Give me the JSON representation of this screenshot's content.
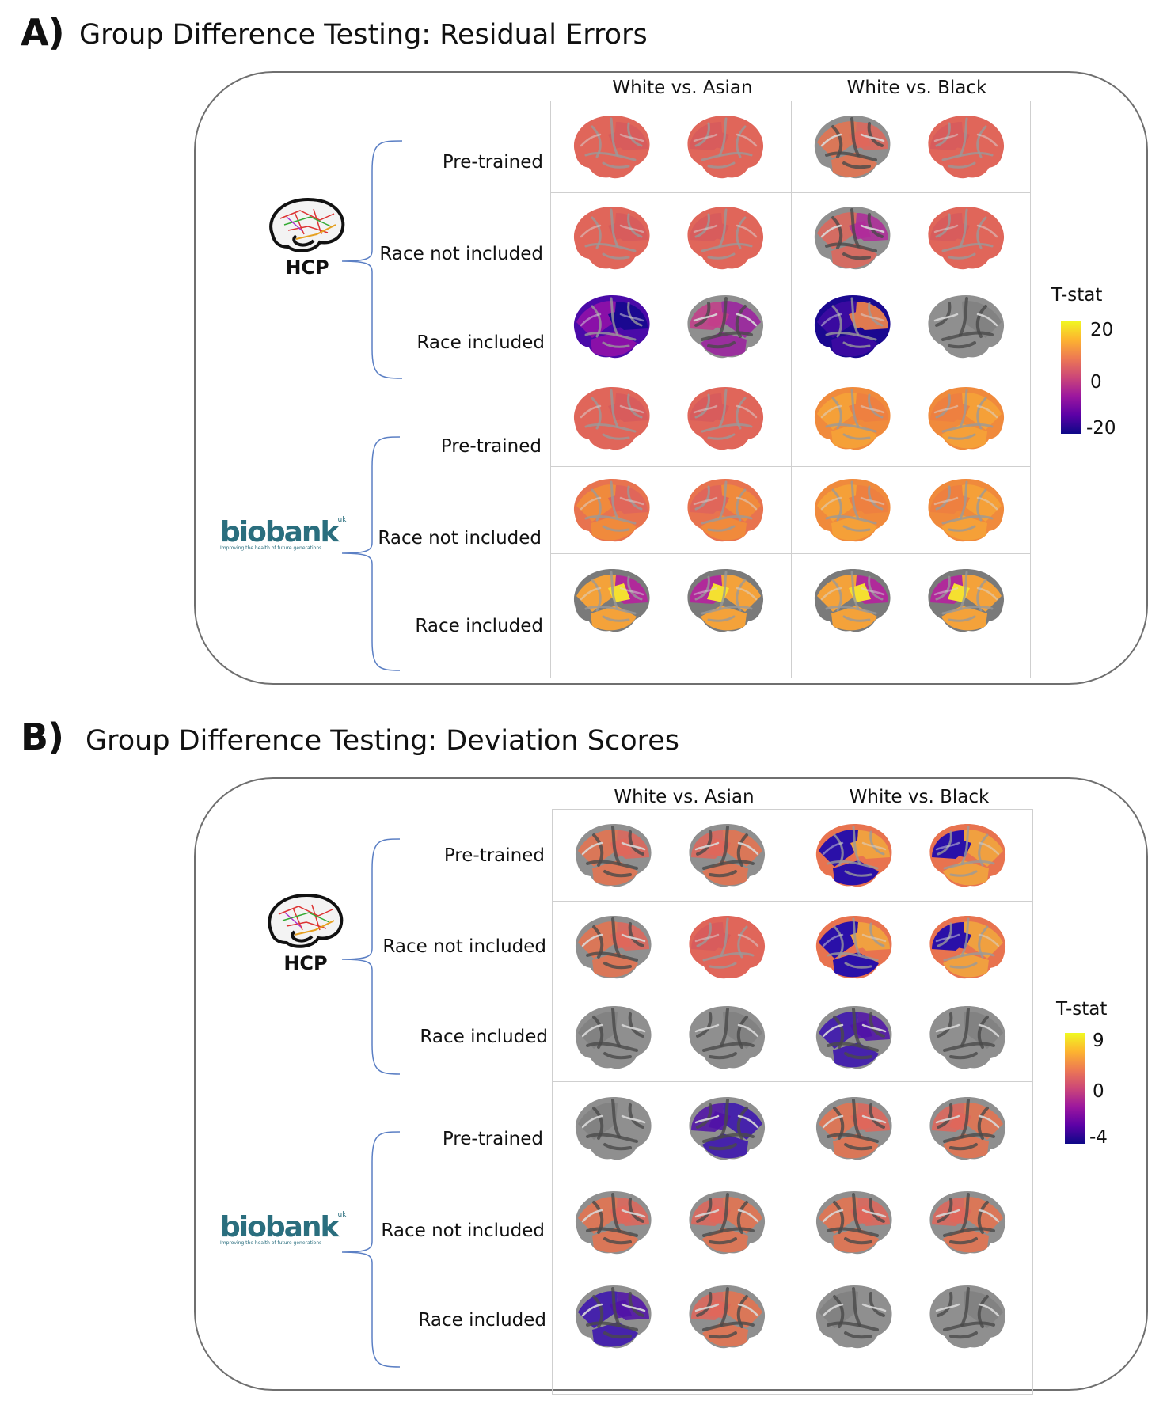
{
  "panels": [
    {
      "letter": "A)",
      "title": "Group Difference Testing: Residual Errors",
      "columns": [
        "White vs. Asian",
        "White vs. Black"
      ],
      "groups": [
        {
          "logo": "hcp-brain-logo",
          "label": "HCP",
          "rows": [
            "Pre-trained",
            "Race not included",
            "Race included"
          ]
        },
        {
          "logo": "biobank-logo",
          "label": "biobank",
          "sup": "uk",
          "tagline": "Improving the health of future generations",
          "rows": [
            "Pre-trained",
            "Race not included",
            "Race included"
          ]
        }
      ],
      "colorbar": {
        "title": "T-stat",
        "ticks": [
          "20",
          "0",
          "-20"
        ],
        "colormap": "plasma"
      },
      "brain_styles": [
        [
          "coral-full",
          "coral-full",
          "gray-coral",
          "coral-full"
        ],
        [
          "coral-full",
          "coral-full",
          "gray-mix",
          "coral-full"
        ],
        [
          "blue-purple",
          "gray-purple",
          "blue-dark",
          "gray-light"
        ],
        [
          "coral-full",
          "coral-full",
          "orange-full",
          "orange-full"
        ],
        [
          "coral-orange",
          "coral-orange",
          "orange-full",
          "orange-full"
        ],
        [
          "gray-mix-yellow",
          "gray-mix-yellow",
          "gray-mix-yellow",
          "gray-mix-yellow"
        ]
      ]
    },
    {
      "letter": "B)",
      "title": "Group Difference Testing: Deviation Scores",
      "columns": [
        "White vs. Asian",
        "White vs. Black"
      ],
      "groups": [
        {
          "logo": "hcp-brain-logo",
          "label": "HCP",
          "rows": [
            "Pre-trained",
            "Race not included",
            "Race included"
          ]
        },
        {
          "logo": "biobank-logo",
          "label": "biobank",
          "sup": "uk",
          "tagline": "Improving the health of future generations",
          "rows": [
            "Pre-trained",
            "Race not included",
            "Race included"
          ]
        }
      ],
      "colorbar": {
        "title": "T-stat",
        "ticks": [
          "9",
          "0",
          "-4"
        ],
        "colormap": "plasma"
      },
      "brain_styles": [
        [
          "gray-coral",
          "gray-coral",
          "blue-coral",
          "coral-blue"
        ],
        [
          "gray-coral",
          "coral-full",
          "blue-coral",
          "coral-blue"
        ],
        [
          "gray-light",
          "gray-light",
          "gray-blue",
          "gray-light"
        ],
        [
          "gray-light",
          "gray-blue",
          "gray-coral",
          "gray-coral"
        ],
        [
          "gray-coral",
          "gray-coral",
          "gray-coral",
          "gray-coral"
        ],
        [
          "gray-blue",
          "gray-coral",
          "gray-light",
          "gray-light"
        ]
      ]
    }
  ]
}
